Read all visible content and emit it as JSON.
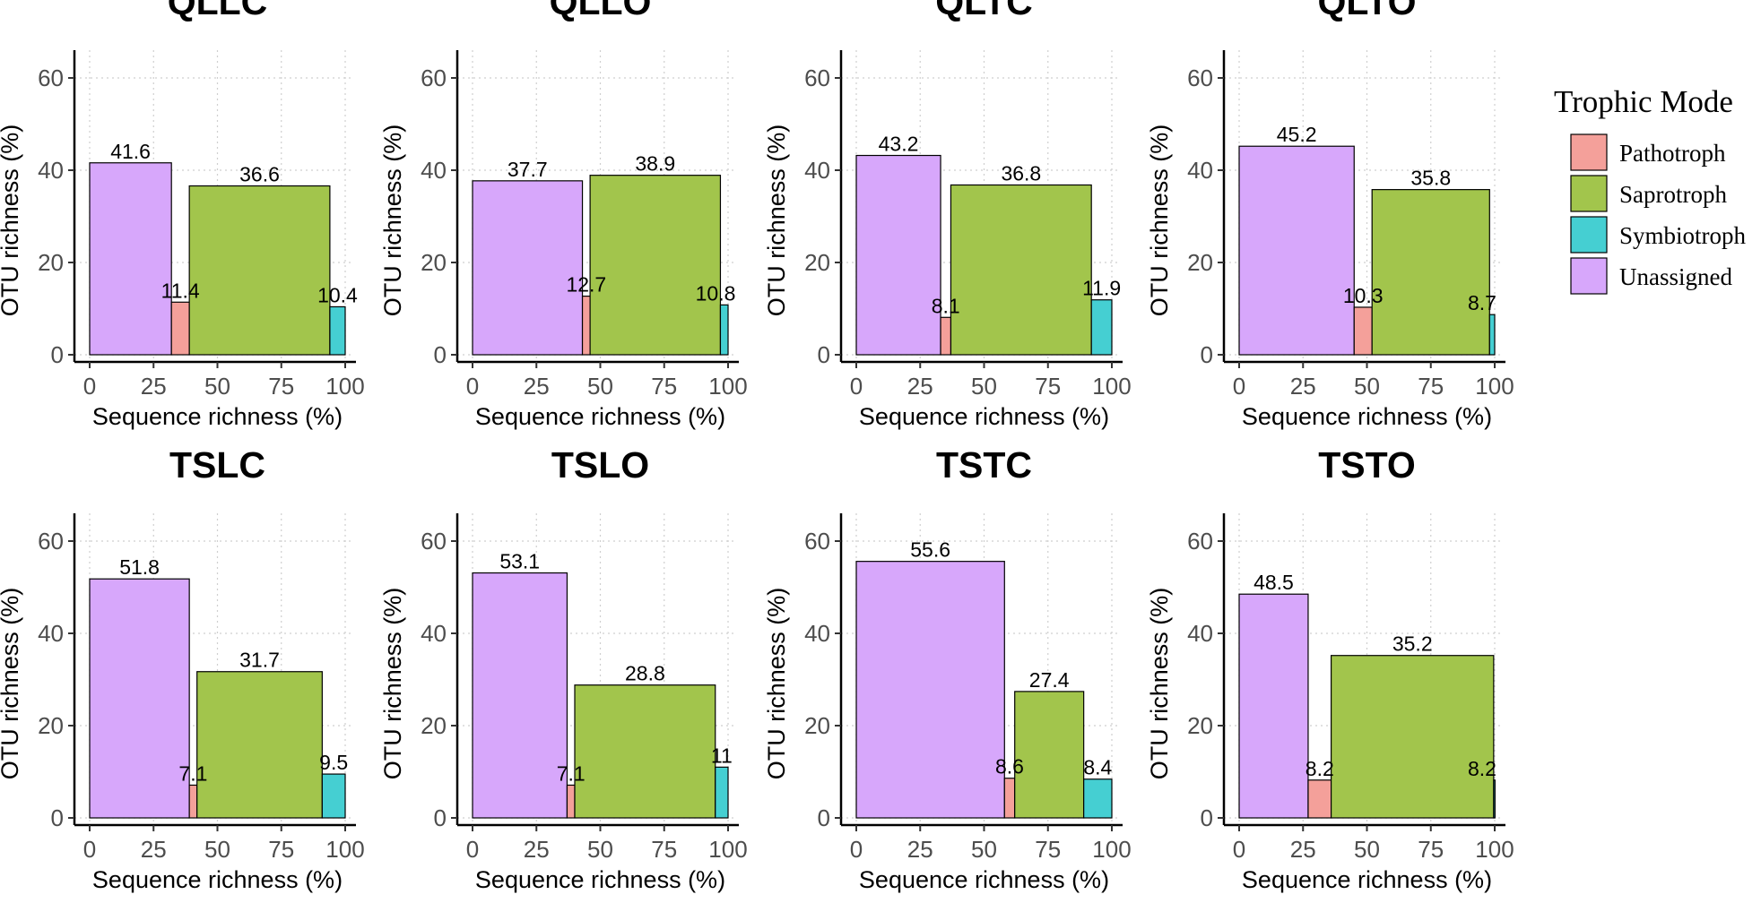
{
  "chart_data": {
    "type": "bar",
    "subtype": "variable-width (mosaic) bar",
    "xlabel": "Sequence richness (%)",
    "ylabel": "OTU richness (%)",
    "xlim": [
      0,
      100
    ],
    "ylim": [
      0,
      60
    ],
    "xticks": [
      0,
      25,
      50,
      75,
      100
    ],
    "yticks": [
      0,
      20,
      40,
      60
    ],
    "grid": true,
    "categories": [
      "Unassigned",
      "Pathotroph",
      "Saprotroph",
      "Symbiotroph"
    ],
    "legend": {
      "title": "Trophic Mode",
      "position": "right",
      "items": [
        {
          "name": "Pathotroph",
          "color": "#F4A09A"
        },
        {
          "name": "Saprotroph",
          "color": "#A2C54C"
        },
        {
          "name": "Symbiotroph",
          "color": "#45CFD2"
        },
        {
          "name": "Unassigned",
          "color": "#D7A7FB"
        }
      ]
    },
    "panels": [
      {
        "title": "QLLC",
        "segments": [
          {
            "category": "Unassigned",
            "otu": 41.6,
            "x_start": 0,
            "x_end": 32,
            "label": "41.6"
          },
          {
            "category": "Pathotroph",
            "otu": 11.4,
            "x_start": 32,
            "x_end": 39,
            "label": "11.4"
          },
          {
            "category": "Saprotroph",
            "otu": 36.6,
            "x_start": 39,
            "x_end": 94,
            "label": "36.6"
          },
          {
            "category": "Symbiotroph",
            "otu": 10.4,
            "x_start": 94,
            "x_end": 100,
            "label": "10.4"
          }
        ]
      },
      {
        "title": "QLLO",
        "segments": [
          {
            "category": "Unassigned",
            "otu": 37.7,
            "x_start": 0,
            "x_end": 43,
            "label": "37.7"
          },
          {
            "category": "Pathotroph",
            "otu": 12.7,
            "x_start": 43,
            "x_end": 46,
            "label": "12.7"
          },
          {
            "category": "Saprotroph",
            "otu": 38.9,
            "x_start": 46,
            "x_end": 97,
            "label": "38.9"
          },
          {
            "category": "Symbiotroph",
            "otu": 10.8,
            "x_start": 97,
            "x_end": 100,
            "label": "10.8"
          }
        ]
      },
      {
        "title": "QLTC",
        "segments": [
          {
            "category": "Unassigned",
            "otu": 43.2,
            "x_start": 0,
            "x_end": 33,
            "label": "43.2"
          },
          {
            "category": "Pathotroph",
            "otu": 8.1,
            "x_start": 33,
            "x_end": 37,
            "label": "8.1"
          },
          {
            "category": "Saprotroph",
            "otu": 36.8,
            "x_start": 37,
            "x_end": 92,
            "label": "36.8"
          },
          {
            "category": "Symbiotroph",
            "otu": 11.9,
            "x_start": 92,
            "x_end": 100,
            "label": "11.9"
          }
        ]
      },
      {
        "title": "QLTO",
        "segments": [
          {
            "category": "Unassigned",
            "otu": 45.2,
            "x_start": 0,
            "x_end": 45,
            "label": "45.2"
          },
          {
            "category": "Pathotroph",
            "otu": 10.3,
            "x_start": 45,
            "x_end": 52,
            "label": "10.3"
          },
          {
            "category": "Saprotroph",
            "otu": 35.8,
            "x_start": 52,
            "x_end": 98,
            "label": "35.8"
          },
          {
            "category": "Symbiotroph",
            "otu": 8.7,
            "x_start": 98,
            "x_end": 100,
            "label": "8.7"
          }
        ]
      },
      {
        "title": "TSLC",
        "segments": [
          {
            "category": "Unassigned",
            "otu": 51.8,
            "x_start": 0,
            "x_end": 39,
            "label": "51.8"
          },
          {
            "category": "Pathotroph",
            "otu": 7.1,
            "x_start": 39,
            "x_end": 42,
            "label": "7.1"
          },
          {
            "category": "Saprotroph",
            "otu": 31.7,
            "x_start": 42,
            "x_end": 91,
            "label": "31.7"
          },
          {
            "category": "Symbiotroph",
            "otu": 9.5,
            "x_start": 91,
            "x_end": 100,
            "label": "9.5"
          }
        ]
      },
      {
        "title": "TSLO",
        "segments": [
          {
            "category": "Unassigned",
            "otu": 53.1,
            "x_start": 0,
            "x_end": 37,
            "label": "53.1"
          },
          {
            "category": "Pathotroph",
            "otu": 7.1,
            "x_start": 37,
            "x_end": 40,
            "label": "7.1"
          },
          {
            "category": "Saprotroph",
            "otu": 28.8,
            "x_start": 40,
            "x_end": 95,
            "label": "28.8"
          },
          {
            "category": "Symbiotroph",
            "otu": 11,
            "x_start": 95,
            "x_end": 100,
            "label": "11"
          }
        ]
      },
      {
        "title": "TSTC",
        "segments": [
          {
            "category": "Unassigned",
            "otu": 55.6,
            "x_start": 0,
            "x_end": 58,
            "label": "55.6"
          },
          {
            "category": "Pathotroph",
            "otu": 8.6,
            "x_start": 58,
            "x_end": 62,
            "label": "8.6"
          },
          {
            "category": "Saprotroph",
            "otu": 27.4,
            "x_start": 62,
            "x_end": 89,
            "label": "27.4"
          },
          {
            "category": "Symbiotroph",
            "otu": 8.4,
            "x_start": 89,
            "x_end": 100,
            "label": "8.4"
          }
        ]
      },
      {
        "title": "TSTO",
        "segments": [
          {
            "category": "Unassigned",
            "otu": 48.5,
            "x_start": 0,
            "x_end": 27,
            "label": "48.5"
          },
          {
            "category": "Pathotroph",
            "otu": 8.2,
            "x_start": 27,
            "x_end": 36,
            "label": "8.2"
          },
          {
            "category": "Saprotroph",
            "otu": 35.2,
            "x_start": 36,
            "x_end": 99.6,
            "label": "35.2"
          },
          {
            "category": "Symbiotroph",
            "otu": 8.2,
            "x_start": 99.6,
            "x_end": 100,
            "label": "8.2"
          }
        ]
      }
    ]
  }
}
